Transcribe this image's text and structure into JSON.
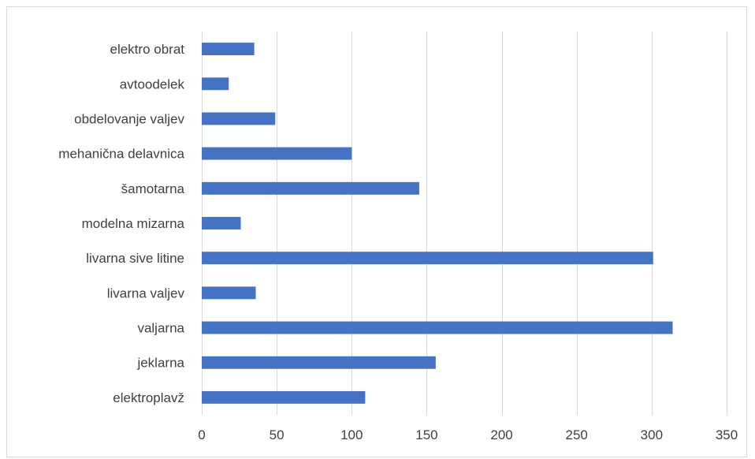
{
  "chart_data": {
    "type": "bar",
    "orientation": "horizontal",
    "categories": [
      "elektroplavž",
      "jeklarna",
      "valjarna",
      "livarna valjev",
      "livarna sive litine",
      "modelna mizarna",
      "šamotarna",
      "mehanična delavnica",
      "obdelovanje valjev",
      "avtoodelek",
      "elektro obrat"
    ],
    "values": [
      109,
      156,
      314,
      36,
      301,
      26,
      145,
      100,
      49,
      18,
      35
    ],
    "xlim": [
      0,
      350
    ],
    "xticks": [
      "0",
      "50",
      "100",
      "150",
      "200",
      "250",
      "300",
      "350"
    ],
    "xtick_values": [
      0,
      50,
      100,
      150,
      200,
      250,
      300,
      350
    ],
    "grid": "vertical",
    "bar_color": "#4472c4",
    "title": "",
    "xlabel": "",
    "ylabel": ""
  }
}
